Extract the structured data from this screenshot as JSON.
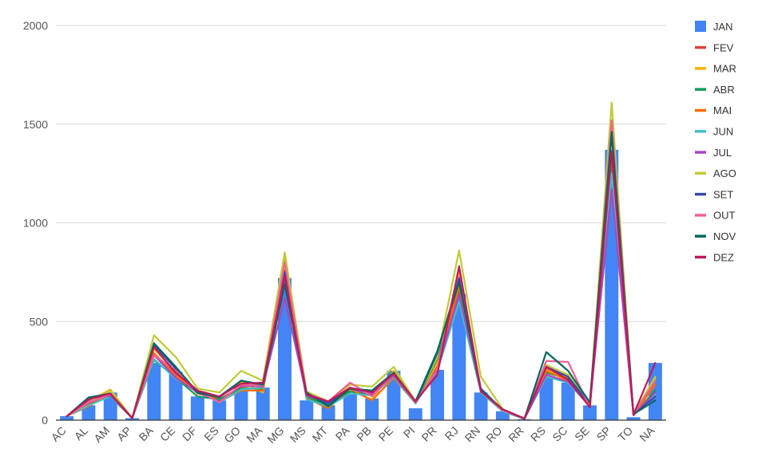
{
  "chart_data": {
    "type": "bar+line",
    "title": "",
    "xlabel": "",
    "ylabel": "",
    "ylim": [
      0,
      2000
    ],
    "yticks": [
      0,
      500,
      1000,
      1500,
      2000
    ],
    "grid": true,
    "legend_position": "right",
    "categories": [
      "AC",
      "AL",
      "AM",
      "AP",
      "BA",
      "CE",
      "DF",
      "ES",
      "GO",
      "MA",
      "MG",
      "MS",
      "MT",
      "PA",
      "PB",
      "PE",
      "PI",
      "PR",
      "RJ",
      "RN",
      "RO",
      "RR",
      "RS",
      "SC",
      "SE",
      "SP",
      "TO",
      "NA"
    ],
    "bar_series": {
      "name": "JAN",
      "color": "#4285F4",
      "values": [
        20,
        75,
        140,
        10,
        290,
        245,
        120,
        100,
        165,
        165,
        720,
        100,
        75,
        130,
        110,
        250,
        60,
        255,
        640,
        140,
        45,
        5,
        215,
        190,
        75,
        1370,
        15,
        290
      ]
    },
    "line_series": [
      {
        "name": "FEV",
        "color": "#DB4437",
        "values": [
          20,
          80,
          130,
          10,
          330,
          240,
          135,
          105,
          170,
          175,
          760,
          115,
          80,
          155,
          130,
          230,
          85,
          270,
          690,
          150,
          50,
          8,
          260,
          210,
          70,
          1300,
          25,
          200
        ]
      },
      {
        "name": "MAR",
        "color": "#F4B400",
        "values": [
          20,
          95,
          155,
          10,
          360,
          245,
          140,
          115,
          195,
          140,
          820,
          125,
          80,
          150,
          105,
          250,
          90,
          290,
          750,
          160,
          50,
          8,
          255,
          215,
          70,
          1350,
          28,
          210
        ]
      },
      {
        "name": "ABR",
        "color": "#0F9D58",
        "values": [
          20,
          90,
          130,
          10,
          305,
          215,
          120,
          105,
          160,
          160,
          700,
          115,
          75,
          145,
          130,
          230,
          90,
          310,
          660,
          150,
          48,
          7,
          240,
          210,
          80,
          1300,
          25,
          150
        ]
      },
      {
        "name": "MAI",
        "color": "#FF6D01",
        "values": [
          20,
          70,
          135,
          10,
          340,
          225,
          150,
          95,
          150,
          150,
          750,
          110,
          60,
          160,
          100,
          215,
          85,
          260,
          680,
          140,
          45,
          7,
          250,
          200,
          70,
          1350,
          25,
          180
        ]
      },
      {
        "name": "JUN",
        "color": "#46BDC6",
        "values": [
          20,
          75,
          120,
          10,
          310,
          210,
          145,
          90,
          155,
          165,
          740,
          105,
          70,
          135,
          125,
          220,
          85,
          250,
          600,
          140,
          45,
          6,
          220,
          190,
          70,
          1250,
          25,
          130
        ]
      },
      {
        "name": "JUL",
        "color": "#AB47BC",
        "values": [
          20,
          100,
          125,
          10,
          330,
          215,
          140,
          95,
          175,
          170,
          620,
          125,
          85,
          160,
          130,
          225,
          90,
          255,
          640,
          150,
          50,
          7,
          230,
          195,
          75,
          1170,
          25,
          140
        ]
      },
      {
        "name": "AGO",
        "color": "#C0CA33",
        "values": [
          20,
          90,
          150,
          10,
          430,
          320,
          160,
          140,
          250,
          200,
          850,
          145,
          95,
          180,
          170,
          270,
          95,
          320,
          860,
          220,
          55,
          8,
          280,
          230,
          80,
          1610,
          30,
          220
        ]
      },
      {
        "name": "SET",
        "color": "#3949AB",
        "values": [
          20,
          110,
          125,
          10,
          380,
          260,
          140,
          120,
          200,
          175,
          750,
          130,
          85,
          160,
          145,
          240,
          90,
          340,
          720,
          160,
          50,
          7,
          270,
          220,
          80,
          1450,
          28,
          120
        ]
      },
      {
        "name": "OUT",
        "color": "#F06292",
        "values": [
          20,
          90,
          130,
          10,
          330,
          250,
          150,
          90,
          180,
          175,
          800,
          135,
          95,
          190,
          120,
          235,
          90,
          260,
          770,
          150,
          50,
          8,
          300,
          295,
          65,
          1520,
          28,
          200
        ]
      },
      {
        "name": "NOV",
        "color": "#00695C",
        "values": [
          20,
          115,
          135,
          10,
          390,
          270,
          140,
          115,
          200,
          180,
          690,
          140,
          70,
          160,
          150,
          240,
          95,
          350,
          700,
          150,
          55,
          8,
          345,
          250,
          90,
          1460,
          30,
          100
        ]
      },
      {
        "name": "DEZ",
        "color": "#C2185B",
        "values": [
          20,
          105,
          135,
          10,
          370,
          240,
          150,
          120,
          185,
          190,
          730,
          130,
          95,
          165,
          140,
          235,
          95,
          230,
          780,
          145,
          55,
          8,
          270,
          205,
          65,
          1360,
          28,
          290
        ]
      }
    ]
  }
}
